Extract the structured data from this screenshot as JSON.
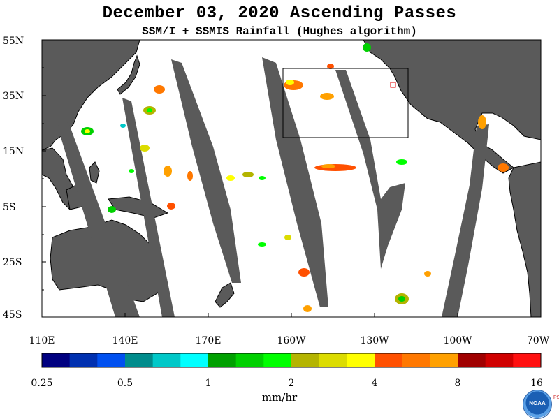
{
  "header": {
    "title": "December 03, 2020  Ascending Passes",
    "subtitle": "SSM/I + SSMIS Rainfall (Hughes algorithm)"
  },
  "map": {
    "lat_labels": [
      "55N",
      "35N",
      "15N",
      "5S",
      "25S",
      "45S"
    ],
    "lon_labels": [
      "110E",
      "140E",
      "170E",
      "160W",
      "130W",
      "100W",
      "70W"
    ],
    "land_color": "#5a5a5a",
    "ocean_color": "#ffffff",
    "region_box": "black rectangle off western North America"
  },
  "colorbar": {
    "colors": [
      "#000080",
      "#0030b0",
      "#0050f0",
      "#008c8c",
      "#00c8c8",
      "#00ffff",
      "#00a000",
      "#00d000",
      "#00ff00",
      "#b4b400",
      "#dcdc00",
      "#ffff00",
      "#ff5000",
      "#ff7800",
      "#ffa000",
      "#a00000",
      "#d00000",
      "#ff1010"
    ],
    "tick_labels": [
      "0.25",
      "0.5",
      "1",
      "2",
      "4",
      "8",
      "16"
    ],
    "units": "mm/hr"
  },
  "logo": {
    "text": "NOAA",
    "side_text": "PSL"
  }
}
